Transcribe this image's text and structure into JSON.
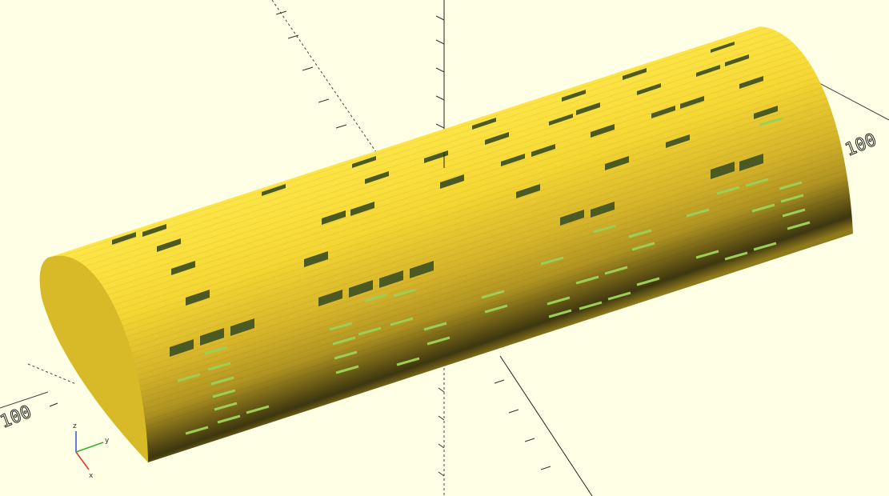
{
  "viewport": {
    "background": "#ffffe5",
    "model": {
      "type": "half-cylinder",
      "color_light": "#f8de36",
      "color_mid": "#d9b726",
      "color_dark": "#3a3510",
      "end_cap_color": "#d8b928",
      "hole_color_dark": "#4a5a22",
      "hole_color_light": "#9ccf55"
    },
    "axis_scale_labels": {
      "right": "100",
      "left": "100"
    },
    "gizmo": {
      "x": "x",
      "y": "y",
      "z": "z",
      "x_color": "#e03030",
      "y_color": "#30b030",
      "z_color": "#3050e0"
    },
    "icons": [
      "orientation-gizmo-icon"
    ]
  }
}
